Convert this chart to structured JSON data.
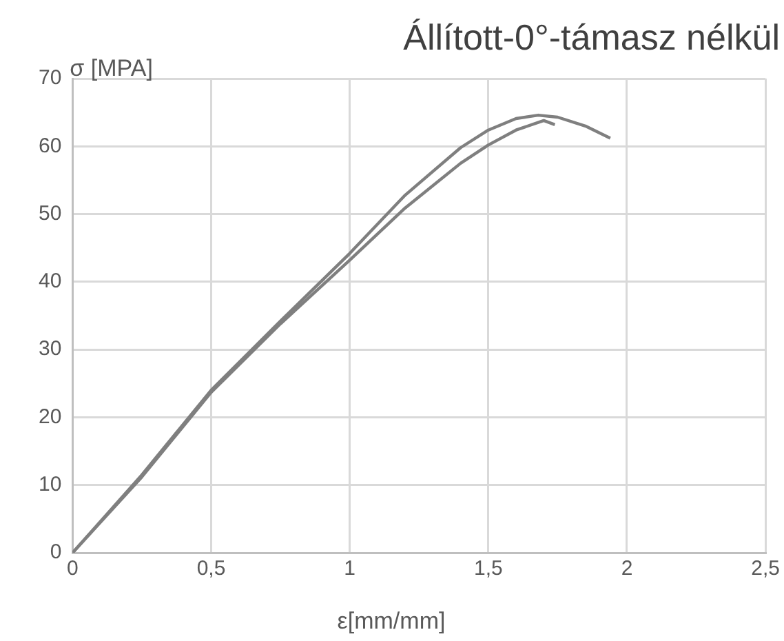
{
  "chart_data": {
    "type": "line",
    "title": "Állított-0°-támasz nélkül",
    "xlabel": "ε[mm/mm]",
    "ylabel": "σ [MPA]",
    "xlim": [
      0,
      2.5
    ],
    "xticks": [
      0,
      {
        "value": 0.5,
        "label": "0,5"
      },
      1,
      {
        "value": 1.5,
        "label": "1,5"
      },
      2,
      {
        "value": 2.5,
        "label": "2,5"
      }
    ],
    "ylim": [
      0,
      70
    ],
    "yticks": [
      0,
      10,
      20,
      30,
      40,
      50,
      60,
      70
    ],
    "grid": true,
    "legend": false,
    "marker": "none",
    "line_style": "solid",
    "series": [
      {
        "color": "#7f7f7f",
        "x": [
          0,
          0.25,
          0.5,
          0.75,
          1,
          1.2,
          1.4,
          1.5,
          1.6,
          1.68,
          1.75,
          1.85,
          1.94
        ],
        "values": [
          0,
          11.5,
          24,
          34.2,
          44.2,
          52.8,
          59.8,
          62.4,
          64.1,
          64.6,
          64.3,
          63,
          61.2
        ]
      },
      {
        "color": "#7f7f7f",
        "x": [
          0,
          0.25,
          0.5,
          0.75,
          1,
          1.2,
          1.4,
          1.5,
          1.6,
          1.7,
          1.74
        ],
        "values": [
          0,
          11.2,
          23.7,
          33.8,
          43.2,
          50.9,
          57.5,
          60.2,
          62.4,
          63.8,
          63.2
        ]
      }
    ]
  }
}
